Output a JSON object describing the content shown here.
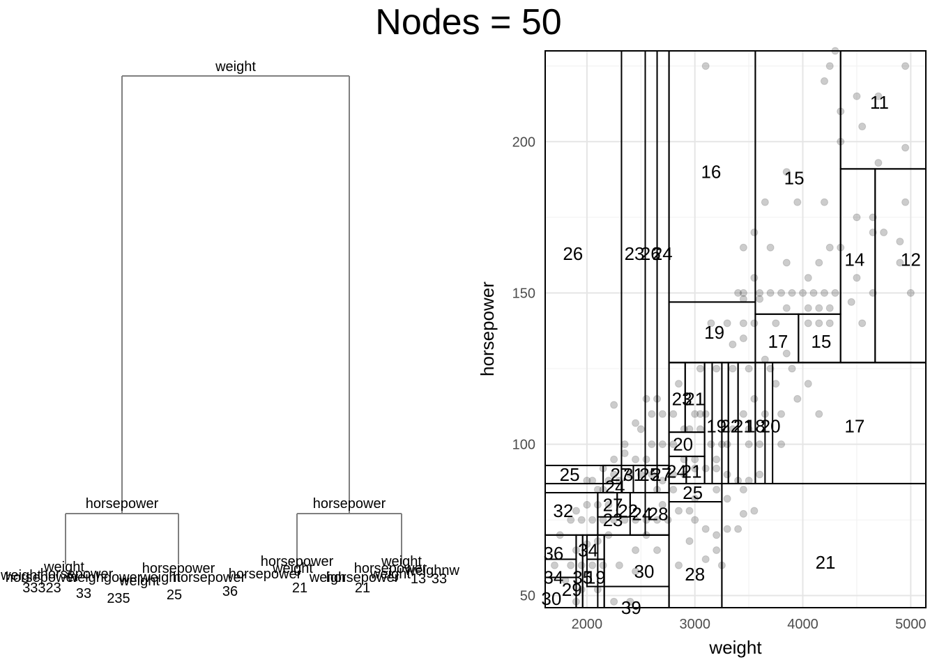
{
  "title": "Nodes = 50",
  "chart_data": [
    {
      "type": "dendrogram",
      "root_label": "weight",
      "level2_labels": [
        "horsepower",
        "horsepower"
      ],
      "level3_labels": [
        "horsepower",
        "horsepower",
        "horsepower",
        "weight"
      ],
      "leaf_cluster_text": [
        "33323",
        "weight",
        "horsepower",
        "235",
        "horsepower",
        "weight",
        "36",
        "horsepower",
        "weight",
        "21",
        "21",
        "horsepower",
        "weight",
        "weigh",
        "horsepower",
        "weight",
        "13",
        "33",
        "weight",
        "weighgower",
        "25",
        "33",
        "weighnw"
      ]
    },
    {
      "type": "scatter",
      "xlabel": "weight",
      "ylabel": "horsepower",
      "xlim": [
        1613,
        5140
      ],
      "ylim": [
        46,
        230
      ],
      "xticks": [
        2000,
        3000,
        4000,
        5000
      ],
      "yticks": [
        50,
        100,
        150,
        200
      ],
      "grid": true,
      "points": [
        [
          3100,
          225
        ],
        [
          4300,
          230
        ],
        [
          4950,
          225
        ],
        [
          4200,
          220
        ],
        [
          4350,
          210
        ],
        [
          4500,
          215
        ],
        [
          4700,
          215
        ],
        [
          4550,
          205
        ],
        [
          4700,
          193
        ],
        [
          4950,
          198
        ],
        [
          4350,
          200
        ],
        [
          4250,
          225
        ],
        [
          3850,
          190
        ],
        [
          3950,
          180
        ],
        [
          3650,
          180
        ],
        [
          4200,
          180
        ],
        [
          4950,
          180
        ],
        [
          4500,
          175
        ],
        [
          3550,
          170
        ],
        [
          4650,
          170
        ],
        [
          4750,
          170
        ],
        [
          4900,
          167
        ],
        [
          4650,
          175
        ],
        [
          3450,
          165
        ],
        [
          3700,
          165
        ],
        [
          4250,
          165
        ],
        [
          4350,
          165
        ],
        [
          3850,
          160
        ],
        [
          4150,
          160
        ],
        [
          4050,
          155
        ],
        [
          4500,
          155
        ],
        [
          3550,
          155
        ],
        [
          3400,
          150
        ],
        [
          3450,
          150
        ],
        [
          3600,
          150
        ],
        [
          3700,
          150
        ],
        [
          3800,
          150
        ],
        [
          3900,
          150
        ],
        [
          4000,
          150
        ],
        [
          4100,
          150
        ],
        [
          4200,
          150
        ],
        [
          4300,
          150
        ],
        [
          3450,
          148
        ],
        [
          3600,
          148
        ],
        [
          3850,
          145
        ],
        [
          4050,
          145
        ],
        [
          4150,
          145
        ],
        [
          4250,
          145
        ],
        [
          4450,
          147
        ],
        [
          4650,
          150
        ],
        [
          5000,
          150
        ],
        [
          4900,
          160
        ],
        [
          3450,
          140
        ],
        [
          3550,
          140
        ],
        [
          3750,
          140
        ],
        [
          4050,
          140
        ],
        [
          4150,
          140
        ],
        [
          4250,
          140
        ],
        [
          4550,
          140
        ],
        [
          3850,
          130
        ],
        [
          3650,
          128
        ],
        [
          3450,
          135
        ],
        [
          3150,
          140
        ],
        [
          3300,
          140
        ],
        [
          3350,
          133
        ],
        [
          3200,
          125
        ],
        [
          3050,
          125
        ],
        [
          3100,
          110
        ],
        [
          3350,
          125
        ],
        [
          3500,
          125
        ],
        [
          3700,
          125
        ],
        [
          3900,
          125
        ],
        [
          3550,
          115
        ],
        [
          3750,
          120
        ],
        [
          4050,
          120
        ],
        [
          3450,
          110
        ],
        [
          3650,
          110
        ],
        [
          3800,
          110
        ],
        [
          4150,
          110
        ],
        [
          3950,
          115
        ],
        [
          3350,
          105
        ],
        [
          3500,
          105
        ],
        [
          3050,
          105
        ],
        [
          3150,
          100
        ],
        [
          3250,
          100
        ],
        [
          3300,
          100
        ],
        [
          3500,
          100
        ],
        [
          3600,
          100
        ],
        [
          3800,
          100
        ],
        [
          3200,
          95
        ],
        [
          3000,
          95
        ],
        [
          2900,
          95
        ],
        [
          2800,
          100
        ],
        [
          2700,
          100
        ],
        [
          2600,
          100
        ],
        [
          2550,
          95
        ],
        [
          2450,
          95
        ],
        [
          2350,
          97
        ],
        [
          2250,
          95
        ],
        [
          2250,
          90
        ],
        [
          2200,
          88
        ],
        [
          2150,
          85
        ],
        [
          2100,
          85
        ],
        [
          2050,
          88
        ],
        [
          2300,
          88
        ],
        [
          2400,
          90
        ],
        [
          2500,
          90
        ],
        [
          2600,
          90
        ],
        [
          2700,
          88
        ],
        [
          2800,
          90
        ],
        [
          2900,
          90
        ],
        [
          3000,
          92
        ],
        [
          3100,
          92
        ],
        [
          3200,
          92
        ],
        [
          3300,
          90
        ],
        [
          3400,
          88
        ],
        [
          3500,
          88
        ],
        [
          3600,
          90
        ],
        [
          2550,
          115
        ],
        [
          2650,
          115
        ],
        [
          2600,
          110
        ],
        [
          2700,
          110
        ],
        [
          2800,
          110
        ],
        [
          2850,
          120
        ],
        [
          2900,
          105
        ],
        [
          2950,
          105
        ],
        [
          3000,
          110
        ],
        [
          3050,
          110
        ],
        [
          2500,
          105
        ],
        [
          2450,
          107
        ],
        [
          2250,
          113
        ],
        [
          2350,
          100
        ],
        [
          2200,
          80
        ],
        [
          2100,
          80
        ],
        [
          2000,
          80
        ],
        [
          1900,
          78
        ],
        [
          1850,
          75
        ],
        [
          1950,
          75
        ],
        [
          2050,
          75
        ],
        [
          2150,
          75
        ],
        [
          2250,
          75
        ],
        [
          2350,
          75
        ],
        [
          2450,
          75
        ],
        [
          2550,
          75
        ],
        [
          2650,
          75
        ],
        [
          2750,
          75
        ],
        [
          2850,
          78
        ],
        [
          2950,
          78
        ],
        [
          3000,
          75
        ],
        [
          3100,
          72
        ],
        [
          3200,
          70
        ],
        [
          3300,
          72
        ],
        [
          3400,
          72
        ],
        [
          3450,
          77
        ],
        [
          3550,
          78
        ],
        [
          3200,
          65
        ],
        [
          3250,
          60
        ],
        [
          3100,
          62
        ],
        [
          2950,
          68
        ],
        [
          2850,
          60
        ],
        [
          2200,
          70
        ],
        [
          2100,
          68
        ],
        [
          2000,
          67
        ],
        [
          1900,
          65
        ],
        [
          1850,
          60
        ],
        [
          1950,
          60
        ],
        [
          2050,
          60
        ],
        [
          2150,
          60
        ],
        [
          2300,
          60
        ],
        [
          2450,
          58
        ],
        [
          1800,
          55
        ],
        [
          1950,
          52
        ],
        [
          2100,
          52
        ],
        [
          2250,
          48
        ],
        [
          2400,
          48
        ],
        [
          1900,
          48
        ],
        [
          1700,
          60
        ],
        [
          1750,
          70
        ],
        [
          2000,
          88
        ],
        [
          2150,
          92
        ],
        [
          2700,
          80
        ],
        [
          2650,
          85
        ],
        [
          2800,
          85
        ],
        [
          3000,
          82
        ],
        [
          3200,
          85
        ],
        [
          3300,
          82
        ],
        [
          3450,
          85
        ],
        [
          2450,
          65
        ],
        [
          2550,
          70
        ],
        [
          2650,
          65
        ]
      ]
    }
  ]
}
